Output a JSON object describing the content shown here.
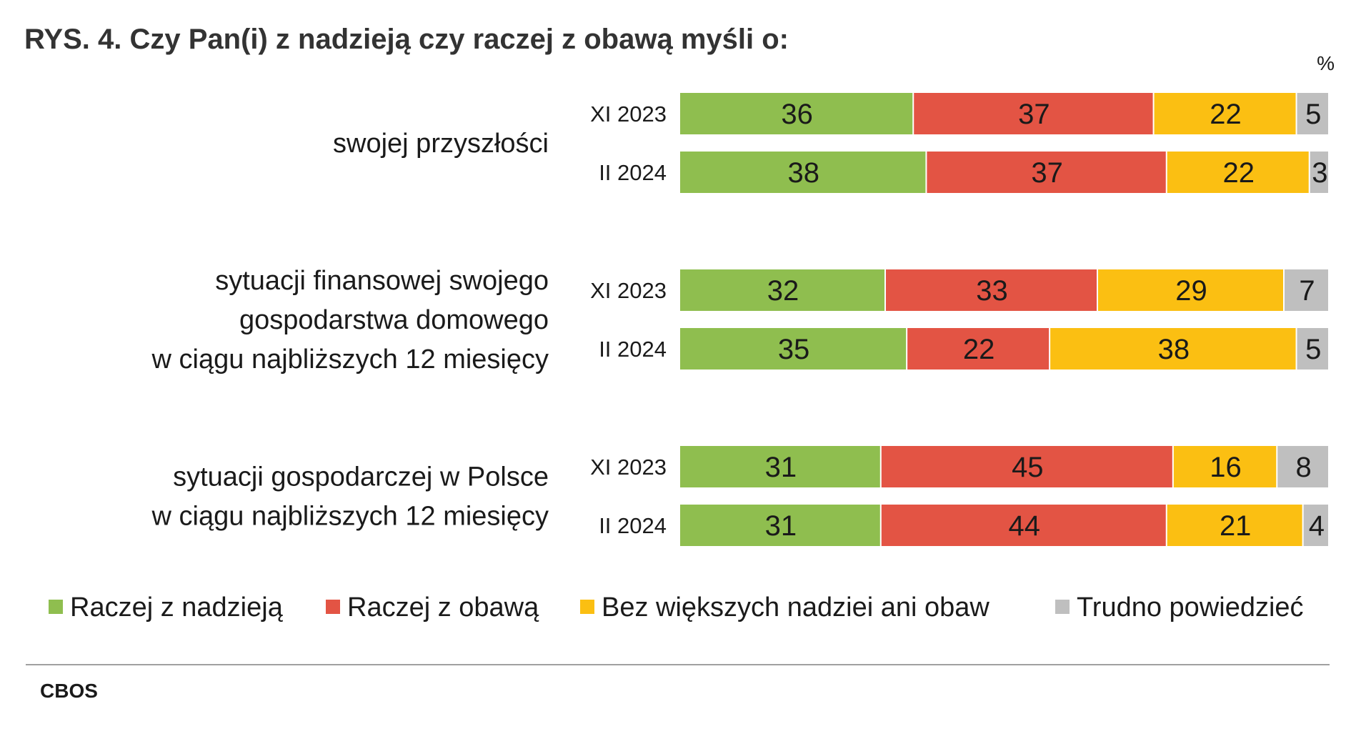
{
  "title": "RYS. 4. Czy Pan(i) z nadzieją czy raczej z obawą myśli o:",
  "unit_label": "%",
  "source": "CBOS",
  "chart_data": {
    "type": "bar",
    "orientation": "horizontal",
    "stacked": true,
    "normalized_to": 100,
    "title": "RYS. 4. Czy Pan(i) z nadzieją czy raczej z obawą myśli o:",
    "unit": "%",
    "legend_position": "bottom",
    "grid": false,
    "groups": [
      {
        "label_lines": [
          "swojej przyszłości"
        ],
        "rows": [
          {
            "period": "XI 2023",
            "values": [
              36,
              37,
              22,
              5
            ]
          },
          {
            "period": "II 2024",
            "values": [
              38,
              37,
              22,
              3
            ]
          }
        ]
      },
      {
        "label_lines": [
          "sytuacji finansowej swojego",
          "gospodarstwa domowego",
          "w ciągu najbliższych 12 miesięcy"
        ],
        "rows": [
          {
            "period": "XI 2023",
            "values": [
              32,
              33,
              29,
              7
            ]
          },
          {
            "period": "II 2024",
            "values": [
              35,
              22,
              38,
              5
            ]
          }
        ]
      },
      {
        "label_lines": [
          "sytuacji gospodarczej w Polsce",
          "w ciągu najbliższych 12 miesięcy"
        ],
        "rows": [
          {
            "period": "XI 2023",
            "values": [
              31,
              45,
              16,
              8
            ]
          },
          {
            "period": "II 2024",
            "values": [
              31,
              44,
              21,
              4
            ]
          }
        ]
      }
    ],
    "series": [
      {
        "name": "Raczej z nadzieją",
        "color": "#8fbe4f"
      },
      {
        "name": "Raczej z obawą",
        "color": "#e35444"
      },
      {
        "name": "Bez większych nadziei ani obaw",
        "color": "#fbbf12"
      },
      {
        "name": "Trudno powiedzieć",
        "color": "#bfbfbf"
      }
    ]
  }
}
